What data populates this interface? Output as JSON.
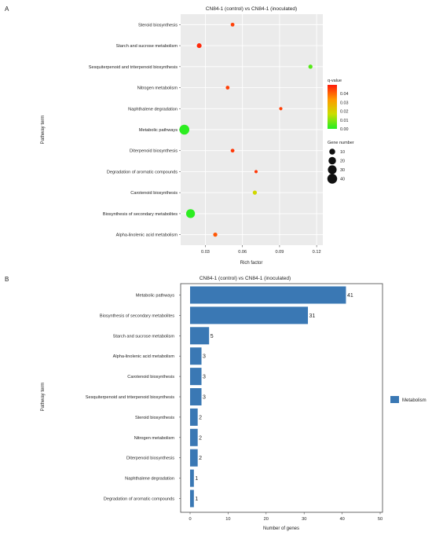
{
  "panels": [
    {
      "label": "A"
    },
    {
      "label": "B"
    }
  ],
  "chart_data": [
    {
      "type": "scatter",
      "title": "CN84-1 (control) vs CN84-1 (inoculated)",
      "xlabel": "Rich factor",
      "ylabel": "Pathway term",
      "xlim": [
        0.01,
        0.125
      ],
      "xticks": [
        0.03,
        0.06,
        0.09,
        0.12
      ],
      "xtick_labels": [
        "0.03",
        "0.06",
        "0.09",
        "0.12"
      ],
      "grid": true,
      "categories": [
        "Steroid biosynthesis",
        "Starch and sucrose metabolism",
        "Sesquiterpenoid and triterpenoid biosynthesis",
        "Nitrogen metabolism",
        "Naphthalene degradation",
        "Metabolic pathways",
        "Diterpenoid biosynthesis",
        "Degradation of aromatic compounds",
        "Carotenoid biosynthesis",
        "Biosynthesis of secondary metabolites",
        "Alpha-linolenic acid metabolism"
      ],
      "points": [
        {
          "category": "Steroid biosynthesis",
          "x": 0.052,
          "gene_number": 2,
          "q_value": 0.045
        },
        {
          "category": "Starch and sucrose metabolism",
          "x": 0.025,
          "gene_number": 5,
          "q_value": 0.048
        },
        {
          "category": "Sesquiterpenoid and triterpenoid biosynthesis",
          "x": 0.115,
          "gene_number": 3,
          "q_value": 0.005
        },
        {
          "category": "Nitrogen metabolism",
          "x": 0.048,
          "gene_number": 2,
          "q_value": 0.045
        },
        {
          "category": "Naphthalene degradation",
          "x": 0.091,
          "gene_number": 1,
          "q_value": 0.045
        },
        {
          "category": "Metabolic pathways",
          "x": 0.013,
          "gene_number": 41,
          "q_value": 0.001
        },
        {
          "category": "Diterpenoid biosynthesis",
          "x": 0.052,
          "gene_number": 2,
          "q_value": 0.046
        },
        {
          "category": "Degradation of aromatic compounds",
          "x": 0.071,
          "gene_number": 1,
          "q_value": 0.046
        },
        {
          "category": "Carotenoid biosynthesis",
          "x": 0.07,
          "gene_number": 3,
          "q_value": 0.018
        },
        {
          "category": "Biosynthesis of secondary metabolites",
          "x": 0.018,
          "gene_number": 31,
          "q_value": 0.001
        },
        {
          "category": "Alpha-linolenic acid metabolism",
          "x": 0.038,
          "gene_number": 3,
          "q_value": 0.042
        }
      ],
      "color_legend": {
        "title": "q-value",
        "ticks": [
          "0.04",
          "0.03",
          "0.02",
          "0.01",
          "0.00"
        ],
        "tick_values": [
          0.04,
          0.03,
          0.02,
          0.01,
          0.0
        ],
        "range": [
          0.0,
          0.05
        ],
        "colors": [
          "#ff1a0a",
          "#ff9900",
          "#ccdd00",
          "#22ee22"
        ]
      },
      "size_legend": {
        "title": "Gene number",
        "values": [
          10,
          20,
          30,
          40
        ],
        "labels": [
          "10",
          "20",
          "30",
          "40"
        ]
      }
    },
    {
      "type": "bar",
      "orientation": "horizontal",
      "title": "CN84-1 (control) vs CN84-1 (inoculated)",
      "xlabel": "Number of genes",
      "ylabel": "Pathway term",
      "xlim": [
        0,
        50
      ],
      "xticks": [
        0,
        10,
        20,
        30,
        40,
        50
      ],
      "xtick_labels": [
        "0",
        "10",
        "20",
        "30",
        "40",
        "50"
      ],
      "categories": [
        "Metabolic pathways",
        "Biosynthesis of secondary metabolites",
        "Starch and sucrose metabolism",
        "Alpha-linolenic acid metabolism",
        "Carotenoid biosynthesis",
        "Sesquiterpenoid and triterpenoid biosynthesis",
        "Steroid biosynthesis",
        "Nitrogen metabolism",
        "Diterpenoid biosynthesis",
        "Naphthalene degradation",
        "Degradation of aromatic compounds"
      ],
      "series": [
        {
          "name": "Metabolism",
          "color": "#3a78b4",
          "values": [
            41,
            31,
            5,
            3,
            3,
            3,
            2,
            2,
            2,
            1,
            1
          ]
        }
      ],
      "value_labels": [
        "41",
        "31",
        "5",
        "3",
        "3",
        "3",
        "2",
        "2",
        "2",
        "1",
        "1"
      ],
      "legend_position": "right"
    }
  ]
}
